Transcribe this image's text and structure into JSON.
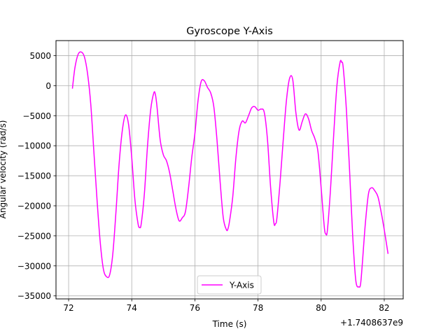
{
  "chart_data": {
    "type": "line",
    "title": "Gyroscope Y-Axis",
    "xlabel": "Time (s)",
    "ylabel": "Angular velocity (rad/s)",
    "x_offset_label": "+1.7408637e9",
    "xlim": [
      71.6,
      82.6
    ],
    "ylim": [
      -35500,
      7500
    ],
    "xticks": [
      72,
      74,
      76,
      78,
      80,
      82
    ],
    "yticks": [
      5000,
      0,
      -5000,
      -10000,
      -15000,
      -20000,
      -25000,
      -30000,
      -35000
    ],
    "grid": true,
    "legend_position": "lower-center",
    "line_color": "#ff00ff",
    "series": [
      {
        "name": "Y-Axis",
        "x": [
          72.12,
          72.2,
          72.3,
          72.4,
          72.5,
          72.6,
          72.7,
          72.8,
          72.9,
          73.0,
          73.1,
          73.2,
          73.3,
          73.4,
          73.5,
          73.6,
          73.7,
          73.8,
          73.9,
          74.0,
          74.1,
          74.2,
          74.25,
          74.3,
          74.4,
          74.5,
          74.6,
          74.7,
          74.75,
          74.8,
          74.9,
          75.0,
          75.1,
          75.2,
          75.3,
          75.4,
          75.5,
          75.6,
          75.7,
          75.8,
          75.9,
          76.0,
          76.1,
          76.2,
          76.3,
          76.4,
          76.5,
          76.6,
          76.7,
          76.8,
          76.9,
          77.0,
          77.05,
          77.1,
          77.2,
          77.3,
          77.4,
          77.5,
          77.6,
          77.7,
          77.8,
          77.9,
          78.0,
          78.1,
          78.2,
          78.3,
          78.4,
          78.5,
          78.55,
          78.6,
          78.7,
          78.8,
          78.9,
          79.0,
          79.1,
          79.2,
          79.3,
          79.4,
          79.5,
          79.6,
          79.7,
          79.8,
          79.9,
          80.0,
          80.1,
          80.15,
          80.2,
          80.3,
          80.4,
          80.5,
          80.6,
          80.65,
          80.7,
          80.8,
          80.9,
          81.0,
          81.1,
          81.2,
          81.25,
          81.3,
          81.4,
          81.5,
          81.6,
          81.7,
          81.8,
          81.9,
          82.0,
          82.12
        ],
        "y": [
          -500,
          3000,
          5200,
          5600,
          4800,
          2000,
          -3000,
          -11000,
          -19000,
          -26000,
          -30500,
          -31800,
          -31500,
          -28000,
          -21000,
          -13000,
          -7500,
          -4900,
          -6500,
          -12000,
          -19000,
          -23000,
          -23600,
          -23000,
          -18000,
          -10000,
          -4000,
          -1200,
          -1500,
          -3500,
          -9000,
          -11500,
          -12500,
          -14500,
          -17500,
          -20500,
          -22500,
          -22000,
          -21000,
          -17000,
          -12000,
          -8000,
          -2500,
          700,
          800,
          -300,
          -1200,
          -3500,
          -9000,
          -16000,
          -22000,
          -24000,
          -23800,
          -22500,
          -18500,
          -12000,
          -7500,
          -5900,
          -6200,
          -5000,
          -3700,
          -3500,
          -4100,
          -3900,
          -4500,
          -9000,
          -17000,
          -22700,
          -23000,
          -22000,
          -16000,
          -9000,
          -2500,
          1200,
          1000,
          -4500,
          -7400,
          -6000,
          -4700,
          -5500,
          -7500,
          -8800,
          -11000,
          -17000,
          -23500,
          -24700,
          -24000,
          -17000,
          -8000,
          0,
          3900,
          3900,
          3000,
          -4000,
          -14000,
          -25000,
          -32500,
          -33500,
          -33000,
          -30000,
          -23000,
          -18000,
          -17000,
          -17500,
          -18500,
          -21000,
          -24000,
          -28000
        ]
      }
    ]
  }
}
